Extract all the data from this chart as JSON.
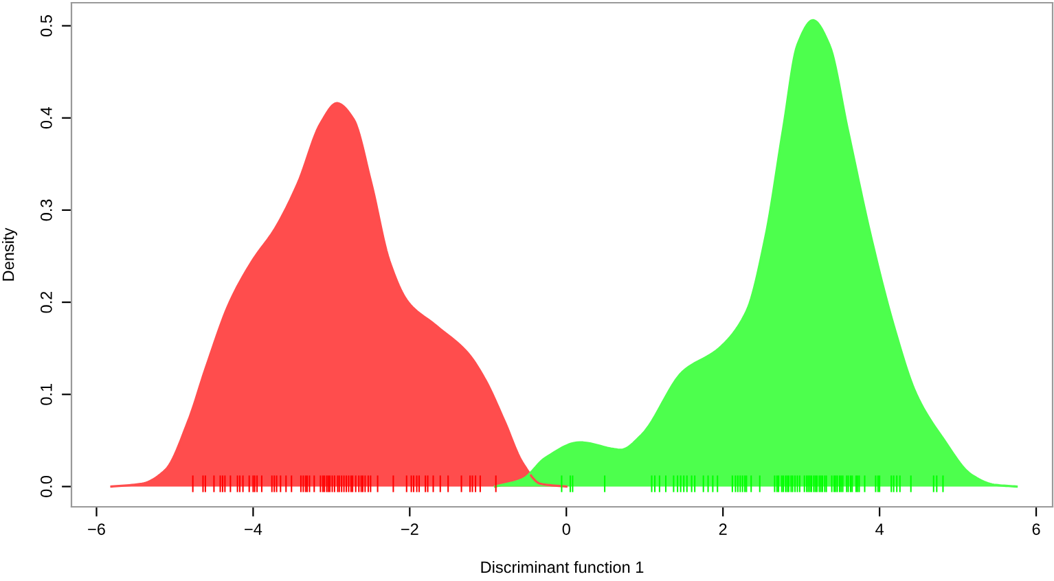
{
  "chart_data": {
    "type": "area",
    "xlabel": "Discriminant function 1",
    "ylabel": "Density",
    "xlim": [
      -6.32,
      6.21
    ],
    "ylim": [
      -0.022,
      0.525
    ],
    "xticks": [
      {
        "value": -6,
        "label": "−6"
      },
      {
        "value": -4,
        "label": "−4"
      },
      {
        "value": -2,
        "label": "−2"
      },
      0,
      2,
      4,
      6
    ],
    "yticks": [
      {
        "value": 0,
        "label": "0.0"
      },
      0.1,
      0.2,
      0.3,
      0.4,
      0.5
    ],
    "grid": false,
    "legend": false,
    "series": [
      {
        "color": "#ff4d4d",
        "x": [
          -5.81,
          -5.42,
          -5.12,
          -4.83,
          -4.6,
          -4.3,
          -4.01,
          -3.72,
          -3.43,
          -3.14,
          -2.93,
          -2.72,
          -2.49,
          -2.26,
          -2.02,
          -1.67,
          -1.26,
          -1.03,
          -0.79,
          -0.56,
          -0.33,
          0.0
        ],
        "values": [
          0.0,
          0.003,
          0.018,
          0.071,
          0.13,
          0.2,
          0.245,
          0.28,
          0.329,
          0.394,
          0.416,
          0.399,
          0.329,
          0.245,
          0.2,
          0.175,
          0.145,
          0.115,
          0.071,
          0.026,
          0.003,
          0.0
        ]
      },
      {
        "color": "#4dff4d",
        "x": [
          -0.91,
          -0.56,
          -0.27,
          0.17,
          0.7,
          0.96,
          1.49,
          1.95,
          2.3,
          2.54,
          2.77,
          2.95,
          3.15,
          3.36,
          3.59,
          3.88,
          4.18,
          4.47,
          4.82,
          5.17,
          5.46,
          5.75
        ],
        "values": [
          0.0,
          0.008,
          0.031,
          0.048,
          0.04,
          0.056,
          0.125,
          0.15,
          0.19,
          0.27,
          0.389,
          0.479,
          0.506,
          0.479,
          0.389,
          0.275,
          0.175,
          0.1,
          0.051,
          0.013,
          0.002,
          0.0
        ]
      },
      {
        "type": "bar",
        "color": "#ff0000",
        "x": [
          -4.77,
          -4.64,
          -4.61,
          -4.5,
          -4.42,
          -4.39,
          -4.36,
          -4.29,
          -4.2,
          -4.17,
          -4.13,
          -4.05,
          -4.0,
          -3.98,
          -3.95,
          -3.89,
          -3.76,
          -3.73,
          -3.7,
          -3.65,
          -3.58,
          -3.51,
          -3.39,
          -3.36,
          -3.33,
          -3.31,
          -3.28,
          -3.22,
          -3.14,
          -3.11,
          -3.09,
          -3.06,
          -3.04,
          -3.02,
          -2.99,
          -2.96,
          -2.92,
          -2.9,
          -2.87,
          -2.84,
          -2.81,
          -2.78,
          -2.75,
          -2.73,
          -2.69,
          -2.65,
          -2.62,
          -2.6,
          -2.57,
          -2.53,
          -2.5,
          -2.41,
          -2.21,
          -2.04,
          -1.98,
          -1.95,
          -1.91,
          -1.88,
          -1.8,
          -1.77,
          -1.7,
          -1.61,
          -1.51,
          -1.34,
          -1.23,
          -1.2,
          -1.16,
          -1.1,
          -0.9
        ],
        "base": [
          -0.006,
          -0.006,
          -0.006,
          -0.006,
          -0.006,
          -0.006,
          -0.006,
          -0.006,
          -0.006,
          -0.006,
          -0.006,
          -0.006,
          -0.006,
          -0.006,
          -0.006,
          -0.006,
          -0.006,
          -0.006,
          -0.006,
          -0.006,
          -0.006,
          -0.006,
          -0.006,
          -0.006,
          -0.006,
          -0.006,
          -0.006,
          -0.006,
          -0.006,
          -0.006,
          -0.006,
          -0.006,
          -0.006,
          -0.006,
          -0.006,
          -0.006,
          -0.006,
          -0.006,
          -0.006,
          -0.006,
          -0.006,
          -0.006,
          -0.006,
          -0.006,
          -0.006,
          -0.006,
          -0.006,
          -0.006,
          -0.006,
          -0.006,
          -0.006,
          -0.006,
          -0.006,
          -0.006,
          -0.006,
          -0.006,
          -0.006,
          -0.006,
          -0.006,
          -0.006,
          -0.006,
          -0.006,
          -0.006,
          -0.006,
          -0.006,
          -0.006,
          -0.006,
          -0.006,
          -0.006
        ],
        "values": [
          0.018,
          0.018,
          0.018,
          0.018,
          0.018,
          0.018,
          0.018,
          0.018,
          0.018,
          0.018,
          0.018,
          0.018,
          0.018,
          0.018,
          0.018,
          0.018,
          0.018,
          0.018,
          0.018,
          0.018,
          0.018,
          0.018,
          0.018,
          0.018,
          0.018,
          0.018,
          0.018,
          0.018,
          0.018,
          0.018,
          0.018,
          0.018,
          0.018,
          0.018,
          0.018,
          0.018,
          0.018,
          0.018,
          0.018,
          0.018,
          0.018,
          0.018,
          0.018,
          0.018,
          0.018,
          0.018,
          0.018,
          0.018,
          0.018,
          0.018,
          0.018,
          0.018,
          0.018,
          0.018,
          0.018,
          0.018,
          0.018,
          0.018,
          0.018,
          0.018,
          0.018,
          0.018,
          0.018,
          0.018,
          0.018,
          0.018,
          0.018,
          0.018,
          0.018
        ]
      },
      {
        "type": "bar",
        "color": "#00ff00",
        "x": [
          -0.06,
          0.05,
          0.08,
          0.49,
          1.09,
          1.13,
          1.19,
          1.27,
          1.37,
          1.42,
          1.46,
          1.5,
          1.54,
          1.6,
          1.64,
          1.75,
          1.81,
          1.87,
          1.93,
          2.12,
          2.16,
          2.19,
          2.22,
          2.25,
          2.28,
          2.3,
          2.36,
          2.47,
          2.66,
          2.69,
          2.71,
          2.75,
          2.77,
          2.8,
          2.82,
          2.84,
          2.87,
          2.89,
          2.92,
          2.95,
          2.98,
          3.04,
          3.07,
          3.09,
          3.11,
          3.13,
          3.16,
          3.18,
          3.2,
          3.23,
          3.25,
          3.27,
          3.3,
          3.32,
          3.39,
          3.42,
          3.44,
          3.46,
          3.49,
          3.51,
          3.53,
          3.58,
          3.6,
          3.63,
          3.65,
          3.7,
          3.72,
          3.74,
          3.81,
          3.95,
          3.98,
          4.0,
          4.15,
          4.18,
          4.22,
          4.26,
          4.4,
          4.69,
          4.73,
          4.81
        ],
        "base": [
          -0.006,
          -0.006,
          -0.006,
          -0.006,
          -0.006,
          -0.006,
          -0.006,
          -0.006,
          -0.006,
          -0.006,
          -0.006,
          -0.006,
          -0.006,
          -0.006,
          -0.006,
          -0.006,
          -0.006,
          -0.006,
          -0.006,
          -0.006,
          -0.006,
          -0.006,
          -0.006,
          -0.006,
          -0.006,
          -0.006,
          -0.006,
          -0.006,
          -0.006,
          -0.006,
          -0.006,
          -0.006,
          -0.006,
          -0.006,
          -0.006,
          -0.006,
          -0.006,
          -0.006,
          -0.006,
          -0.006,
          -0.006,
          -0.006,
          -0.006,
          -0.006,
          -0.006,
          -0.006,
          -0.006,
          -0.006,
          -0.006,
          -0.006,
          -0.006,
          -0.006,
          -0.006,
          -0.006,
          -0.006,
          -0.006,
          -0.006,
          -0.006,
          -0.006,
          -0.006,
          -0.006,
          -0.006,
          -0.006,
          -0.006,
          -0.006,
          -0.006,
          -0.006,
          -0.006,
          -0.006,
          -0.006,
          -0.006,
          -0.006,
          -0.006,
          -0.006,
          -0.006,
          -0.006,
          -0.006,
          -0.006,
          -0.006,
          -0.006
        ],
        "values": [
          0.018,
          0.018,
          0.018,
          0.018,
          0.018,
          0.018,
          0.018,
          0.018,
          0.018,
          0.018,
          0.018,
          0.018,
          0.018,
          0.018,
          0.018,
          0.018,
          0.018,
          0.018,
          0.018,
          0.018,
          0.018,
          0.018,
          0.018,
          0.018,
          0.018,
          0.018,
          0.018,
          0.018,
          0.018,
          0.018,
          0.018,
          0.018,
          0.018,
          0.018,
          0.018,
          0.018,
          0.018,
          0.018,
          0.018,
          0.018,
          0.018,
          0.018,
          0.018,
          0.018,
          0.018,
          0.018,
          0.018,
          0.018,
          0.018,
          0.018,
          0.018,
          0.018,
          0.018,
          0.018,
          0.018,
          0.018,
          0.018,
          0.018,
          0.018,
          0.018,
          0.018,
          0.018,
          0.018,
          0.018,
          0.018,
          0.018,
          0.018,
          0.018,
          0.018,
          0.018,
          0.018,
          0.018,
          0.018,
          0.018,
          0.018,
          0.018,
          0.018,
          0.018,
          0.018,
          0.018
        ]
      }
    ]
  }
}
